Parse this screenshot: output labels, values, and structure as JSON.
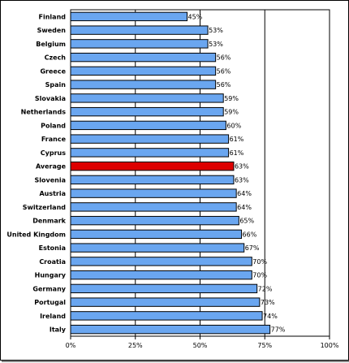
{
  "chart_data": {
    "type": "bar",
    "orientation": "horizontal",
    "categories": [
      "Finland",
      "Sweden",
      "Belgium",
      "Czech",
      "Greece",
      "Spain",
      "Slovakia",
      "Netherlands",
      "Poland",
      "France",
      "Cyprus",
      "Average",
      "Slovenia",
      "Austria",
      "Switzerland",
      "Denmark",
      "United Kingdom",
      "Estonia",
      "Croatia",
      "Hungary",
      "Germany",
      "Portugal",
      "Ireland",
      "Italy"
    ],
    "values": [
      45,
      53,
      53,
      56,
      56,
      56,
      59,
      59,
      60,
      61,
      61,
      63,
      63,
      64,
      64,
      65,
      66,
      67,
      70,
      70,
      72,
      73,
      74,
      77
    ],
    "value_labels": [
      "45%",
      "53%",
      "53%",
      "56%",
      "56%",
      "56%",
      "59%",
      "59%",
      "60%",
      "61%",
      "61%",
      "63%",
      "63%",
      "64%",
      "64%",
      "65%",
      "66%",
      "67%",
      "70%",
      "70%",
      "72%",
      "73%",
      "74%",
      "77%"
    ],
    "xlim": [
      0,
      100
    ],
    "x_ticks": [
      0,
      25,
      50,
      75,
      100
    ],
    "x_tick_labels": [
      "0%",
      "25%",
      "50%",
      "75%",
      "100%"
    ],
    "grid": "vertical major lines",
    "legend": "none",
    "bar_color": "#6AA6F0",
    "highlight_category": "Average",
    "highlight_color": "#DD0000"
  }
}
